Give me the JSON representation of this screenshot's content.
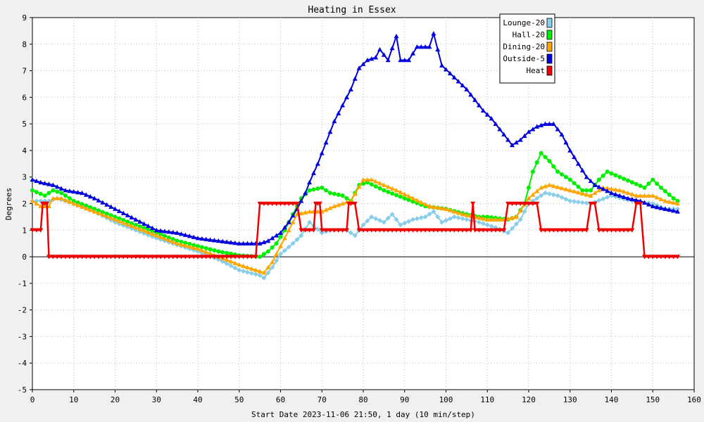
{
  "chart_data": {
    "type": "line",
    "title": "Heating in Essex",
    "xlabel": "Start Date 2023-11-06 21:50, 1 day (10 min/step)",
    "ylabel": "Degrees",
    "xlim": [
      0,
      160
    ],
    "ylim": [
      -5,
      9
    ],
    "x_ticks": [
      0,
      10,
      20,
      30,
      40,
      50,
      60,
      70,
      80,
      90,
      100,
      110,
      120,
      130,
      140,
      150,
      160
    ],
    "y_ticks": [
      -5,
      -4,
      -3,
      -2,
      -1,
      0,
      1,
      2,
      3,
      4,
      5,
      6,
      7,
      8,
      9
    ],
    "grid": true,
    "legend_position": "top-right",
    "series": [
      {
        "name": "Lounge-20",
        "color": "#87ceeb",
        "marker": "diamond",
        "points": [
          [
            0,
            2.1
          ],
          [
            4,
            2.1
          ],
          [
            6,
            2.2
          ],
          [
            10,
            2.0
          ],
          [
            15,
            1.7
          ],
          [
            20,
            1.3
          ],
          [
            30,
            0.7
          ],
          [
            40,
            0.2
          ],
          [
            45,
            -0.1
          ],
          [
            50,
            -0.5
          ],
          [
            55,
            -0.7
          ],
          [
            56,
            -0.8
          ],
          [
            58,
            -0.4
          ],
          [
            60,
            0.1
          ],
          [
            63,
            0.5
          ],
          [
            65,
            0.8
          ],
          [
            67,
            1.3
          ],
          [
            70,
            0.9
          ],
          [
            72,
            1.0
          ],
          [
            75,
            1.0
          ],
          [
            76,
            1.0
          ],
          [
            78,
            0.8
          ],
          [
            80,
            1.2
          ],
          [
            82,
            1.5
          ],
          [
            85,
            1.3
          ],
          [
            87,
            1.6
          ],
          [
            89,
            1.2
          ],
          [
            92,
            1.4
          ],
          [
            95,
            1.5
          ],
          [
            97,
            1.7
          ],
          [
            99,
            1.3
          ],
          [
            102,
            1.5
          ],
          [
            105,
            1.4
          ],
          [
            108,
            1.3
          ],
          [
            112,
            1.1
          ],
          [
            115,
            0.9
          ],
          [
            118,
            1.4
          ],
          [
            120,
            2.0
          ],
          [
            122,
            2.2
          ],
          [
            124,
            2.4
          ],
          [
            127,
            2.3
          ],
          [
            130,
            2.1
          ],
          [
            135,
            2.0
          ],
          [
            140,
            2.3
          ],
          [
            145,
            2.1
          ],
          [
            150,
            2.0
          ],
          [
            153,
            1.8
          ],
          [
            156,
            1.8
          ]
        ]
      },
      {
        "name": "Hall-20",
        "color": "#00ee00",
        "marker": "circle",
        "points": [
          [
            0,
            2.5
          ],
          [
            3,
            2.3
          ],
          [
            5,
            2.5
          ],
          [
            7,
            2.4
          ],
          [
            10,
            2.1
          ],
          [
            15,
            1.8
          ],
          [
            20,
            1.5
          ],
          [
            25,
            1.2
          ],
          [
            30,
            0.9
          ],
          [
            35,
            0.6
          ],
          [
            40,
            0.4
          ],
          [
            45,
            0.2
          ],
          [
            50,
            0.05
          ],
          [
            55,
            0.0
          ],
          [
            57,
            0.2
          ],
          [
            59,
            0.5
          ],
          [
            61,
            1.0
          ],
          [
            63,
            1.6
          ],
          [
            65,
            2.2
          ],
          [
            67,
            2.5
          ],
          [
            70,
            2.6
          ],
          [
            72,
            2.4
          ],
          [
            75,
            2.3
          ],
          [
            77,
            2.1
          ],
          [
            79,
            2.7
          ],
          [
            81,
            2.8
          ],
          [
            85,
            2.5
          ],
          [
            90,
            2.2
          ],
          [
            95,
            1.9
          ],
          [
            100,
            1.8
          ],
          [
            105,
            1.6
          ],
          [
            108,
            1.5
          ],
          [
            110,
            1.5
          ],
          [
            115,
            1.4
          ],
          [
            117,
            1.5
          ],
          [
            119,
            2.0
          ],
          [
            121,
            3.2
          ],
          [
            123,
            3.9
          ],
          [
            125,
            3.6
          ],
          [
            127,
            3.2
          ],
          [
            130,
            2.9
          ],
          [
            133,
            2.5
          ],
          [
            135,
            2.5
          ],
          [
            137,
            2.9
          ],
          [
            139,
            3.2
          ],
          [
            142,
            3.0
          ],
          [
            145,
            2.8
          ],
          [
            148,
            2.6
          ],
          [
            150,
            2.9
          ],
          [
            152,
            2.6
          ],
          [
            155,
            2.2
          ],
          [
            156,
            2.1
          ]
        ]
      },
      {
        "name": "Dining-20",
        "color": "#ffa500",
        "marker": "triangle-up",
        "points": [
          [
            0,
            2.1
          ],
          [
            2,
            1.9
          ],
          [
            4,
            1.9
          ],
          [
            5,
            2.2
          ],
          [
            7,
            2.2
          ],
          [
            10,
            2.0
          ],
          [
            15,
            1.7
          ],
          [
            20,
            1.4
          ],
          [
            25,
            1.1
          ],
          [
            30,
            0.8
          ],
          [
            35,
            0.5
          ],
          [
            40,
            0.3
          ],
          [
            45,
            0.0
          ],
          [
            50,
            -0.3
          ],
          [
            54,
            -0.5
          ],
          [
            56,
            -0.6
          ],
          [
            58,
            -0.2
          ],
          [
            60,
            0.4
          ],
          [
            62,
            1.0
          ],
          [
            64,
            1.6
          ],
          [
            67,
            1.7
          ],
          [
            70,
            1.7
          ],
          [
            73,
            1.9
          ],
          [
            77,
            2.1
          ],
          [
            80,
            2.9
          ],
          [
            82,
            2.9
          ],
          [
            85,
            2.7
          ],
          [
            88,
            2.5
          ],
          [
            92,
            2.2
          ],
          [
            96,
            1.9
          ],
          [
            100,
            1.8
          ],
          [
            104,
            1.6
          ],
          [
            107,
            1.5
          ],
          [
            110,
            1.4
          ],
          [
            114,
            1.4
          ],
          [
            117,
            1.5
          ],
          [
            120,
            2.2
          ],
          [
            123,
            2.6
          ],
          [
            125,
            2.7
          ],
          [
            130,
            2.5
          ],
          [
            135,
            2.3
          ],
          [
            138,
            2.6
          ],
          [
            142,
            2.5
          ],
          [
            146,
            2.3
          ],
          [
            150,
            2.3
          ],
          [
            153,
            2.1
          ],
          [
            156,
            2.0
          ]
        ]
      },
      {
        "name": "Outside-5",
        "color": "#0000dd",
        "marker": "triangle-up",
        "points": [
          [
            0,
            2.9
          ],
          [
            2,
            2.8
          ],
          [
            5,
            2.7
          ],
          [
            8,
            2.5
          ],
          [
            12,
            2.4
          ],
          [
            15,
            2.2
          ],
          [
            20,
            1.8
          ],
          [
            25,
            1.4
          ],
          [
            30,
            1.0
          ],
          [
            35,
            0.9
          ],
          [
            40,
            0.7
          ],
          [
            45,
            0.6
          ],
          [
            50,
            0.5
          ],
          [
            55,
            0.5
          ],
          [
            57,
            0.6
          ],
          [
            60,
            0.9
          ],
          [
            62,
            1.3
          ],
          [
            64,
            1.8
          ],
          [
            66,
            2.4
          ],
          [
            67,
            2.8
          ],
          [
            69,
            3.5
          ],
          [
            71,
            4.3
          ],
          [
            73,
            5.1
          ],
          [
            75,
            5.7
          ],
          [
            77,
            6.3
          ],
          [
            79,
            7.1
          ],
          [
            81,
            7.4
          ],
          [
            83,
            7.5
          ],
          [
            84,
            7.8
          ],
          [
            86,
            7.4
          ],
          [
            88,
            8.3
          ],
          [
            89,
            7.4
          ],
          [
            91,
            7.4
          ],
          [
            93,
            7.9
          ],
          [
            96,
            7.9
          ],
          [
            97,
            8.4
          ],
          [
            99,
            7.2
          ],
          [
            101,
            6.9
          ],
          [
            103,
            6.6
          ],
          [
            105,
            6.3
          ],
          [
            107,
            5.9
          ],
          [
            109,
            5.5
          ],
          [
            111,
            5.2
          ],
          [
            113,
            4.8
          ],
          [
            115,
            4.4
          ],
          [
            116,
            4.2
          ],
          [
            118,
            4.4
          ],
          [
            120,
            4.7
          ],
          [
            122,
            4.9
          ],
          [
            124,
            5.0
          ],
          [
            126,
            5.0
          ],
          [
            128,
            4.6
          ],
          [
            130,
            4.0
          ],
          [
            132,
            3.5
          ],
          [
            134,
            3.0
          ],
          [
            136,
            2.7
          ],
          [
            140,
            2.4
          ],
          [
            144,
            2.2
          ],
          [
            147,
            2.1
          ],
          [
            150,
            1.9
          ],
          [
            153,
            1.8
          ],
          [
            156,
            1.7
          ]
        ]
      },
      {
        "name": "Heat",
        "color": "#ee0000",
        "marker": "triangle-down",
        "points": [
          [
            0,
            1
          ],
          [
            2,
            1
          ],
          [
            2.5,
            2
          ],
          [
            3.5,
            2
          ],
          [
            4,
            0
          ],
          [
            54,
            0
          ],
          [
            55,
            2
          ],
          [
            64,
            2
          ],
          [
            65,
            1
          ],
          [
            68,
            1
          ],
          [
            68.5,
            2
          ],
          [
            69.5,
            2
          ],
          [
            70,
            1
          ],
          [
            76,
            1
          ],
          [
            76.5,
            2
          ],
          [
            78,
            2
          ],
          [
            79,
            1
          ],
          [
            106,
            1
          ],
          [
            106.5,
            2
          ],
          [
            107,
            1
          ],
          [
            114,
            1
          ],
          [
            115,
            2
          ],
          [
            122,
            2
          ],
          [
            123,
            1
          ],
          [
            134,
            1
          ],
          [
            135,
            2
          ],
          [
            136,
            2
          ],
          [
            137,
            1
          ],
          [
            145,
            1
          ],
          [
            146,
            2
          ],
          [
            147,
            2
          ],
          [
            148,
            0
          ],
          [
            156,
            0
          ]
        ]
      }
    ]
  }
}
